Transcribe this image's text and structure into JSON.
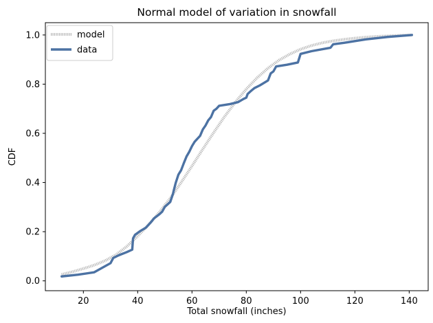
{
  "chart_data": {
    "type": "line",
    "title": "Normal model of variation in snowfall",
    "xlabel": "Total snowfall (inches)",
    "ylabel": "CDF",
    "xlim": [
      6,
      147
    ],
    "ylim": [
      -0.04,
      1.05
    ],
    "xticks": [
      20,
      40,
      60,
      80,
      100,
      120,
      140
    ],
    "yticks": [
      0.0,
      0.2,
      0.4,
      0.6,
      0.8,
      1.0
    ],
    "grid": false,
    "legend_position": "top-left",
    "series": [
      {
        "name": "model",
        "color": "#b8b8b8",
        "style": "dotted-thick",
        "x": [
          12,
          16,
          20,
          24,
          28,
          32,
          36,
          40,
          44,
          48,
          52,
          56,
          60,
          64,
          68,
          72,
          76,
          80,
          84,
          88,
          92,
          96,
          100,
          104,
          108,
          112,
          116,
          120,
          124,
          128,
          132,
          136,
          141
        ],
        "y": [
          0.026,
          0.037,
          0.05,
          0.064,
          0.082,
          0.106,
          0.14,
          0.182,
          0.228,
          0.279,
          0.336,
          0.4,
          0.467,
          0.536,
          0.603,
          0.668,
          0.727,
          0.78,
          0.826,
          0.865,
          0.897,
          0.922,
          0.942,
          0.957,
          0.968,
          0.976,
          0.982,
          0.987,
          0.991,
          0.994,
          0.996,
          0.998,
          1.0
        ]
      },
      {
        "name": "data",
        "color": "#4c72a3",
        "style": "solid",
        "x": [
          12,
          18,
          24,
          30,
          31,
          33,
          36,
          38,
          38.3,
          39,
          41,
          43,
          45,
          46,
          48,
          49,
          50,
          52,
          53,
          53.3,
          54,
          55,
          56,
          57,
          58,
          59,
          60,
          61,
          62,
          63,
          64,
          65,
          66,
          67,
          68,
          69,
          70,
          74,
          77,
          79,
          80,
          80.5,
          82,
          83,
          85,
          88,
          89,
          90,
          91,
          95,
          99,
          100,
          104,
          110,
          111,
          112,
          116,
          120,
          124,
          128,
          132,
          141
        ],
        "y": [
          0.018,
          0.025,
          0.035,
          0.072,
          0.093,
          0.104,
          0.117,
          0.127,
          0.173,
          0.187,
          0.203,
          0.216,
          0.24,
          0.254,
          0.271,
          0.281,
          0.301,
          0.321,
          0.354,
          0.368,
          0.398,
          0.432,
          0.45,
          0.479,
          0.506,
          0.525,
          0.548,
          0.566,
          0.578,
          0.59,
          0.616,
          0.632,
          0.653,
          0.666,
          0.692,
          0.7,
          0.712,
          0.719,
          0.727,
          0.74,
          0.745,
          0.76,
          0.775,
          0.784,
          0.795,
          0.815,
          0.844,
          0.852,
          0.872,
          0.879,
          0.888,
          0.923,
          0.934,
          0.946,
          0.948,
          0.962,
          0.968,
          0.975,
          0.982,
          0.987,
          0.992,
          1.0
        ]
      }
    ]
  }
}
